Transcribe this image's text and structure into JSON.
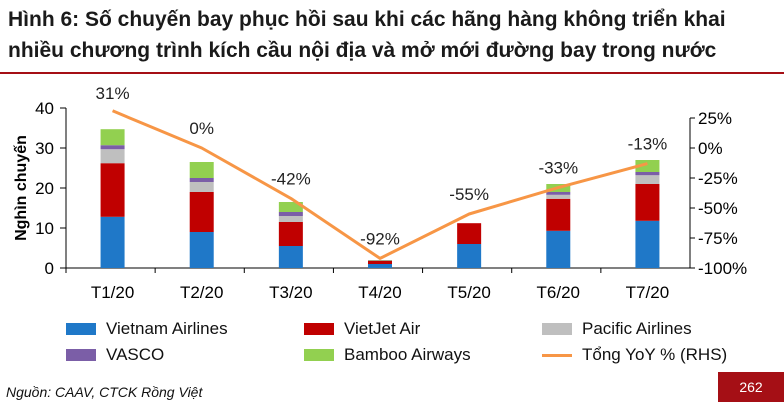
{
  "header": {
    "title": "Hình 6: Số chuyến bay phục hồi sau khi các hãng hàng không triển khai nhiều chương trình kích cầu nội địa và mở mới đường bay trong nước"
  },
  "chart_data": {
    "type": "bar",
    "stacked": true,
    "categories": [
      "T1/20",
      "T2/20",
      "T3/20",
      "T4/20",
      "T5/20",
      "T6/20",
      "T7/20"
    ],
    "ylabel": "Nghìn chuyến",
    "ylim": [
      0,
      40
    ],
    "yticks": [
      0,
      10,
      20,
      30,
      40
    ],
    "y2lim": [
      -100,
      25
    ],
    "y2ticks": [
      25,
      0,
      -25,
      -50,
      -75,
      -100
    ],
    "y2ticklabels": [
      "25%",
      "0%",
      "-25%",
      "-50%",
      "-75%",
      "-100%"
    ],
    "legend_position": "bottom",
    "grid": false,
    "series": [
      {
        "name": "Vietnam Airlines",
        "color": "#1f78c8",
        "values": [
          12.8,
          9.0,
          5.5,
          1.0,
          6.0,
          9.3,
          11.8
        ]
      },
      {
        "name": "VietJet Air",
        "color": "#c00000",
        "values": [
          13.4,
          10.0,
          6.0,
          0.8,
          5.2,
          8.0,
          9.2
        ]
      },
      {
        "name": "Pacific Airlines",
        "color": "#bfbfbf",
        "values": [
          3.5,
          2.5,
          1.5,
          0.0,
          0.0,
          1.0,
          2.2
        ]
      },
      {
        "name": "VASCO",
        "color": "#7b5ea7",
        "values": [
          1.0,
          1.0,
          1.0,
          0.1,
          0.0,
          0.7,
          0.8
        ]
      },
      {
        "name": "Bamboo Airways",
        "color": "#92d050",
        "values": [
          4.0,
          4.0,
          2.5,
          0.1,
          0.0,
          2.0,
          3.0
        ]
      }
    ],
    "line_series": {
      "name": "Tổng YoY % (RHS)",
      "color": "#f79646",
      "axis": "right",
      "values": [
        31,
        0,
        -42,
        -92,
        -55,
        -33,
        -13
      ],
      "labels": [
        "31%",
        "0%",
        "-42%",
        "-92%",
        "-55%",
        "-33%",
        "-13%"
      ]
    }
  },
  "footer": {
    "source": "Nguồn: CAAV, CTCK Rồng Việt",
    "page_number": "262"
  }
}
